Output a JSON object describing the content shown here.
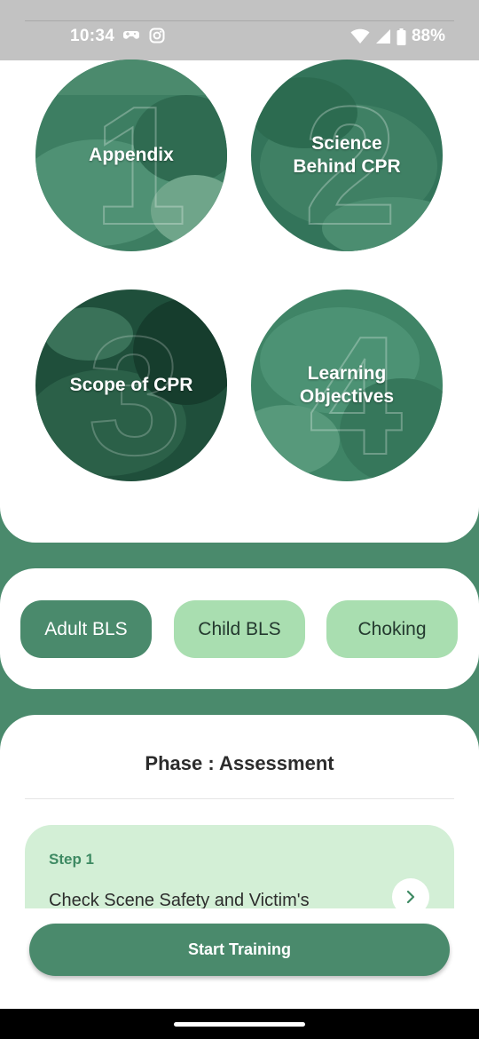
{
  "status_bar": {
    "time": "10:34",
    "battery": "88%",
    "icons": [
      "game-controller-icon",
      "instagram-icon",
      "wifi-icon",
      "signal-icon",
      "battery-icon"
    ]
  },
  "topics": [
    {
      "label": "Appendix",
      "number": "1"
    },
    {
      "label": "Science\nBehind CPR",
      "number": "2"
    },
    {
      "label": "Scope of CPR",
      "number": "3"
    },
    {
      "label": "Learning\nObjectives",
      "number": "4"
    }
  ],
  "categories": [
    {
      "label": "Adult BLS",
      "active": true
    },
    {
      "label": "Child BLS",
      "active": false
    },
    {
      "label": "Choking",
      "active": false
    }
  ],
  "phase": {
    "title": "Phase : Assessment",
    "step_label": "Step 1",
    "step_text": "Check Scene Safety and Victim's"
  },
  "start_button": "Start Training",
  "colors": {
    "primary": "#4a8a6c",
    "chip_inactive": "#a9deb0",
    "step_bg": "#d3efd6",
    "step_label": "#3e8a63"
  }
}
